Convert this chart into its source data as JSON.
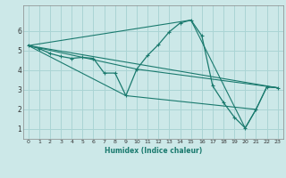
{
  "xlabel": "Humidex (Indice chaleur)",
  "bg_color": "#cce8e8",
  "grid_color": "#aad4d4",
  "line_color": "#1a7a6e",
  "xlim": [
    -0.5,
    23.5
  ],
  "ylim": [
    0.5,
    7.3
  ],
  "xticks": [
    0,
    1,
    2,
    3,
    4,
    5,
    6,
    7,
    8,
    9,
    10,
    11,
    12,
    13,
    14,
    15,
    16,
    17,
    18,
    19,
    20,
    21,
    22,
    23
  ],
  "yticks": [
    1,
    2,
    3,
    4,
    5,
    6
  ],
  "main_line": {
    "x": [
      0,
      1,
      2,
      3,
      4,
      5,
      6,
      7,
      8,
      9,
      10,
      11,
      12,
      13,
      14,
      15,
      16,
      17,
      18,
      19,
      20,
      21,
      22,
      23
    ],
    "y": [
      5.25,
      5.1,
      4.85,
      4.7,
      4.6,
      4.65,
      4.6,
      3.85,
      3.85,
      2.7,
      4.05,
      4.75,
      5.3,
      5.95,
      6.4,
      6.55,
      5.75,
      3.2,
      2.35,
      1.6,
      1.05,
      2.0,
      3.15,
      3.1
    ]
  },
  "fan_lines": [
    {
      "x": [
        0,
        23
      ],
      "y": [
        5.25,
        3.1
      ]
    },
    {
      "x": [
        0,
        10,
        23
      ],
      "y": [
        5.25,
        4.05,
        3.1
      ]
    },
    {
      "x": [
        0,
        9,
        21,
        22,
        23
      ],
      "y": [
        5.25,
        2.7,
        2.0,
        3.15,
        3.1
      ]
    },
    {
      "x": [
        0,
        15,
        20,
        21
      ],
      "y": [
        5.25,
        6.55,
        1.05,
        2.0
      ]
    }
  ]
}
